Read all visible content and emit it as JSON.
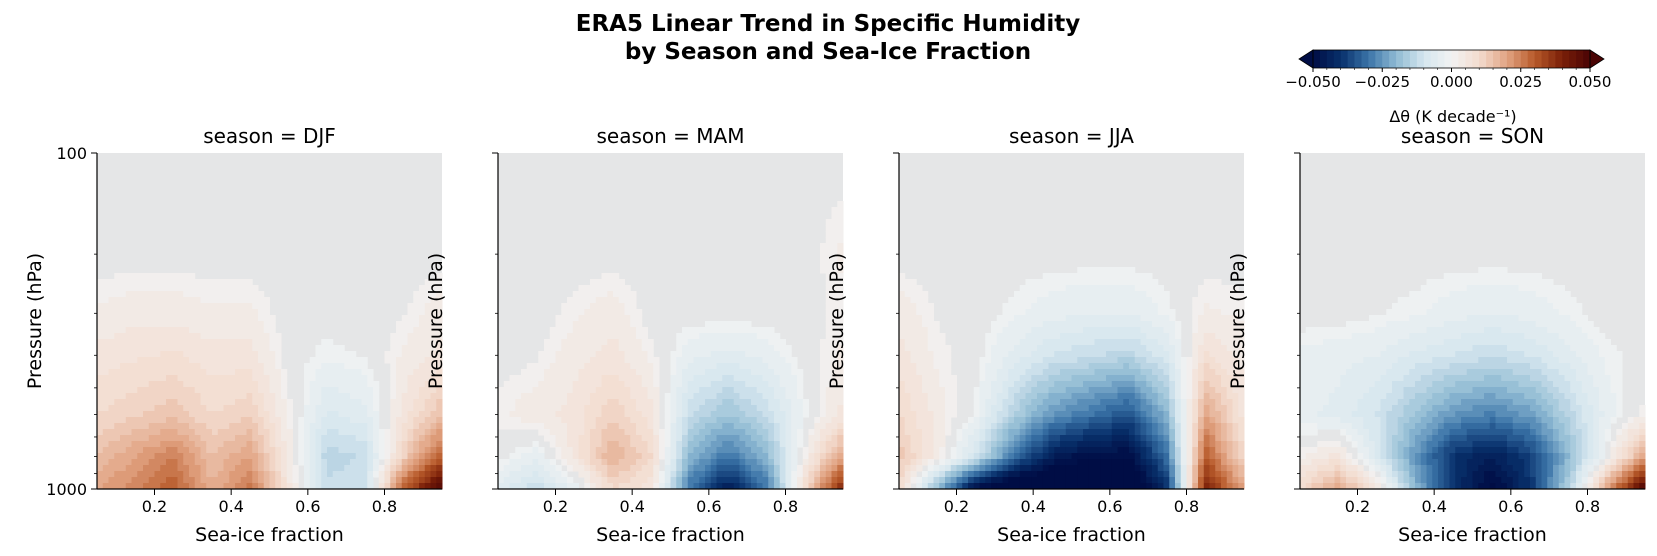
{
  "figure": {
    "title_line1": "ERA5 Linear Trend in Specific Humidity",
    "title_line2": "by Season and Sea-Ice Fraction"
  },
  "colorbar": {
    "label": "Δθ (K decade⁻¹)",
    "ticks": [
      "−0.050",
      "−0.025",
      "0.000",
      "0.025",
      "0.050"
    ],
    "tick_values": [
      -0.05,
      -0.025,
      0,
      0.025,
      0.05
    ],
    "range": [
      -0.05,
      0.05
    ],
    "levels": 40,
    "extend": "both",
    "colormap": "RdBu_r-like",
    "palette": [
      "#000d45",
      "#08306b",
      "#3a73a8",
      "#8fbad3",
      "#d5e6ee",
      "#f2f2f2",
      "#f3dccf",
      "#e2a483",
      "#b85a2a",
      "#7a1f08",
      "#4a0404"
    ]
  },
  "chart_data": [
    {
      "type": "heatmap",
      "title": "season = DJF",
      "xlabel": "Sea-ice fraction",
      "ylabel": "Pressure (hPa)",
      "xlim": [
        0.05,
        0.95
      ],
      "ylim": [
        1000,
        100
      ],
      "yscale": "log",
      "xticks": [
        "0.2",
        "0.4",
        "0.6",
        "0.8"
      ],
      "xtick_values": [
        0.2,
        0.4,
        0.6,
        0.8
      ],
      "yticks": [
        "100",
        "1000"
      ],
      "ytick_values": [
        100,
        1000
      ],
      "show_ytick_labels": true,
      "x": [
        0.05,
        0.15,
        0.25,
        0.35,
        0.45,
        0.55,
        0.65,
        0.75,
        0.85,
        0.95
      ],
      "pressure": [
        1000,
        800,
        600,
        400,
        300,
        200,
        100
      ],
      "values": [
        [
          0.02,
          0.024,
          0.03,
          0.018,
          0.026,
          0.006,
          -0.012,
          -0.01,
          0.03,
          0.05
        ],
        [
          0.015,
          0.02,
          0.025,
          0.015,
          0.02,
          0.004,
          -0.014,
          -0.012,
          0.012,
          0.03
        ],
        [
          0.01,
          0.012,
          0.014,
          0.01,
          0.012,
          0.002,
          -0.008,
          -0.006,
          0.006,
          0.015
        ],
        [
          0.006,
          0.007,
          0.008,
          0.006,
          0.006,
          0.0,
          -0.002,
          -0.001,
          0.003,
          0.006
        ],
        [
          0.003,
          0.004,
          0.004,
          0.003,
          0.003,
          0.0,
          0.0,
          0.0,
          0.001,
          0.004
        ],
        [
          0.0,
          0.0,
          0.0,
          0.0,
          0.0,
          0.0,
          0.0,
          0.0,
          0.0,
          0.0
        ],
        [
          0.0,
          0.0,
          0.0,
          0.0,
          0.0,
          0.0,
          0.0,
          0.0,
          0.0,
          0.0
        ]
      ]
    },
    {
      "type": "heatmap",
      "title": "season = MAM",
      "xlabel": "Sea-ice fraction",
      "ylabel": "Pressure (hPa)",
      "xlim": [
        0.05,
        0.95
      ],
      "ylim": [
        1000,
        100
      ],
      "yscale": "log",
      "xticks": [
        "0.2",
        "0.4",
        "0.6",
        "0.8"
      ],
      "xtick_values": [
        0.2,
        0.4,
        0.6,
        0.8
      ],
      "yticks": [
        "100",
        "1000"
      ],
      "ytick_values": [
        100,
        1000
      ],
      "show_ytick_labels": false,
      "x": [
        0.05,
        0.15,
        0.25,
        0.35,
        0.45,
        0.55,
        0.65,
        0.75,
        0.85,
        0.95
      ],
      "pressure": [
        1000,
        800,
        600,
        400,
        300,
        200,
        100
      ],
      "values": [
        [
          -0.006,
          -0.012,
          -0.004,
          0.01,
          0.006,
          -0.03,
          -0.045,
          -0.03,
          0.01,
          0.04
        ],
        [
          0.0,
          -0.004,
          0.006,
          0.018,
          0.01,
          -0.02,
          -0.03,
          -0.02,
          0.002,
          0.02
        ],
        [
          0.002,
          0.004,
          0.006,
          0.012,
          0.006,
          -0.012,
          -0.018,
          -0.012,
          -0.002,
          0.006
        ],
        [
          0.0,
          0.001,
          0.004,
          0.006,
          0.002,
          -0.004,
          -0.006,
          -0.004,
          0.0,
          0.003
        ],
        [
          0.0,
          0.0,
          0.002,
          0.004,
          0.0,
          0.0,
          0.0,
          0.0,
          0.0,
          0.002
        ],
        [
          0.0,
          0.0,
          0.0,
          0.0,
          0.0,
          0.0,
          0.0,
          0.0,
          0.0,
          0.003
        ],
        [
          0.0,
          0.0,
          0.0,
          0.0,
          0.0,
          0.0,
          0.0,
          0.0,
          0.0,
          0.0
        ]
      ]
    },
    {
      "type": "heatmap",
      "title": "season = JJA",
      "xlabel": "Sea-ice fraction",
      "ylabel": "Pressure (hPa)",
      "xlim": [
        0.05,
        0.95
      ],
      "ylim": [
        1000,
        100
      ],
      "yscale": "log",
      "xticks": [
        "0.2",
        "0.4",
        "0.6",
        "0.8"
      ],
      "xtick_values": [
        0.2,
        0.4,
        0.6,
        0.8
      ],
      "yticks": [
        "100",
        "1000"
      ],
      "ytick_values": [
        100,
        1000
      ],
      "show_ytick_labels": false,
      "x": [
        0.05,
        0.15,
        0.25,
        0.35,
        0.45,
        0.55,
        0.65,
        0.75,
        0.85,
        0.95
      ],
      "pressure": [
        1000,
        800,
        600,
        400,
        300,
        200,
        100
      ],
      "values": [
        [
          0.01,
          -0.02,
          -0.05,
          -0.06,
          -0.06,
          -0.06,
          -0.06,
          -0.04,
          0.04,
          0.02
        ],
        [
          0.014,
          0.004,
          -0.01,
          -0.03,
          -0.045,
          -0.05,
          -0.05,
          -0.03,
          0.03,
          0.01
        ],
        [
          0.01,
          0.004,
          -0.002,
          -0.015,
          -0.025,
          -0.03,
          -0.035,
          -0.02,
          0.02,
          0.006
        ],
        [
          0.006,
          0.002,
          0.0,
          -0.006,
          -0.01,
          -0.012,
          -0.014,
          -0.008,
          0.008,
          0.004
        ],
        [
          0.004,
          0.001,
          0.0,
          -0.002,
          -0.004,
          -0.005,
          -0.005,
          -0.002,
          0.003,
          0.002
        ],
        [
          0.0,
          0.0,
          0.0,
          0.0,
          0.0,
          0.0,
          0.0,
          0.0,
          0.0,
          0.0
        ],
        [
          0.0,
          0.0,
          0.0,
          0.0,
          0.0,
          0.0,
          0.0,
          0.0,
          0.0,
          0.0
        ]
      ]
    },
    {
      "type": "heatmap",
      "title": "season = SON",
      "xlabel": "Sea-ice fraction",
      "ylabel": "Pressure (hPa)",
      "xlim": [
        0.05,
        0.95
      ],
      "ylim": [
        1000,
        100
      ],
      "yscale": "log",
      "xticks": [
        "0.2",
        "0.4",
        "0.6",
        "0.8"
      ],
      "xtick_values": [
        0.2,
        0.4,
        0.6,
        0.8
      ],
      "yticks": [
        "100",
        "1000"
      ],
      "ytick_values": [
        100,
        1000
      ],
      "show_ytick_labels": false,
      "x": [
        0.05,
        0.15,
        0.25,
        0.35,
        0.45,
        0.55,
        0.65,
        0.75,
        0.85,
        0.95
      ],
      "pressure": [
        1000,
        800,
        600,
        400,
        300,
        200,
        100
      ],
      "values": [
        [
          0.01,
          0.02,
          0.006,
          -0.02,
          -0.04,
          -0.052,
          -0.04,
          -0.015,
          0.02,
          0.05
        ],
        [
          0.002,
          0.006,
          -0.008,
          -0.025,
          -0.04,
          -0.045,
          -0.038,
          -0.02,
          0.0,
          0.02
        ],
        [
          -0.004,
          -0.006,
          -0.01,
          -0.018,
          -0.025,
          -0.028,
          -0.024,
          -0.014,
          -0.004,
          0.002
        ],
        [
          -0.003,
          -0.004,
          -0.005,
          -0.008,
          -0.01,
          -0.012,
          -0.01,
          -0.006,
          -0.002,
          0.0
        ],
        [
          0.0,
          0.0,
          -0.001,
          -0.002,
          -0.004,
          -0.005,
          -0.004,
          -0.002,
          0.0,
          0.0
        ],
        [
          0.0,
          0.0,
          0.0,
          0.0,
          0.0,
          0.0,
          0.0,
          0.0,
          0.0,
          0.0
        ],
        [
          0.0,
          0.0,
          0.0,
          0.0,
          0.0,
          0.0,
          0.0,
          0.0,
          0.0,
          0.0
        ]
      ]
    }
  ]
}
